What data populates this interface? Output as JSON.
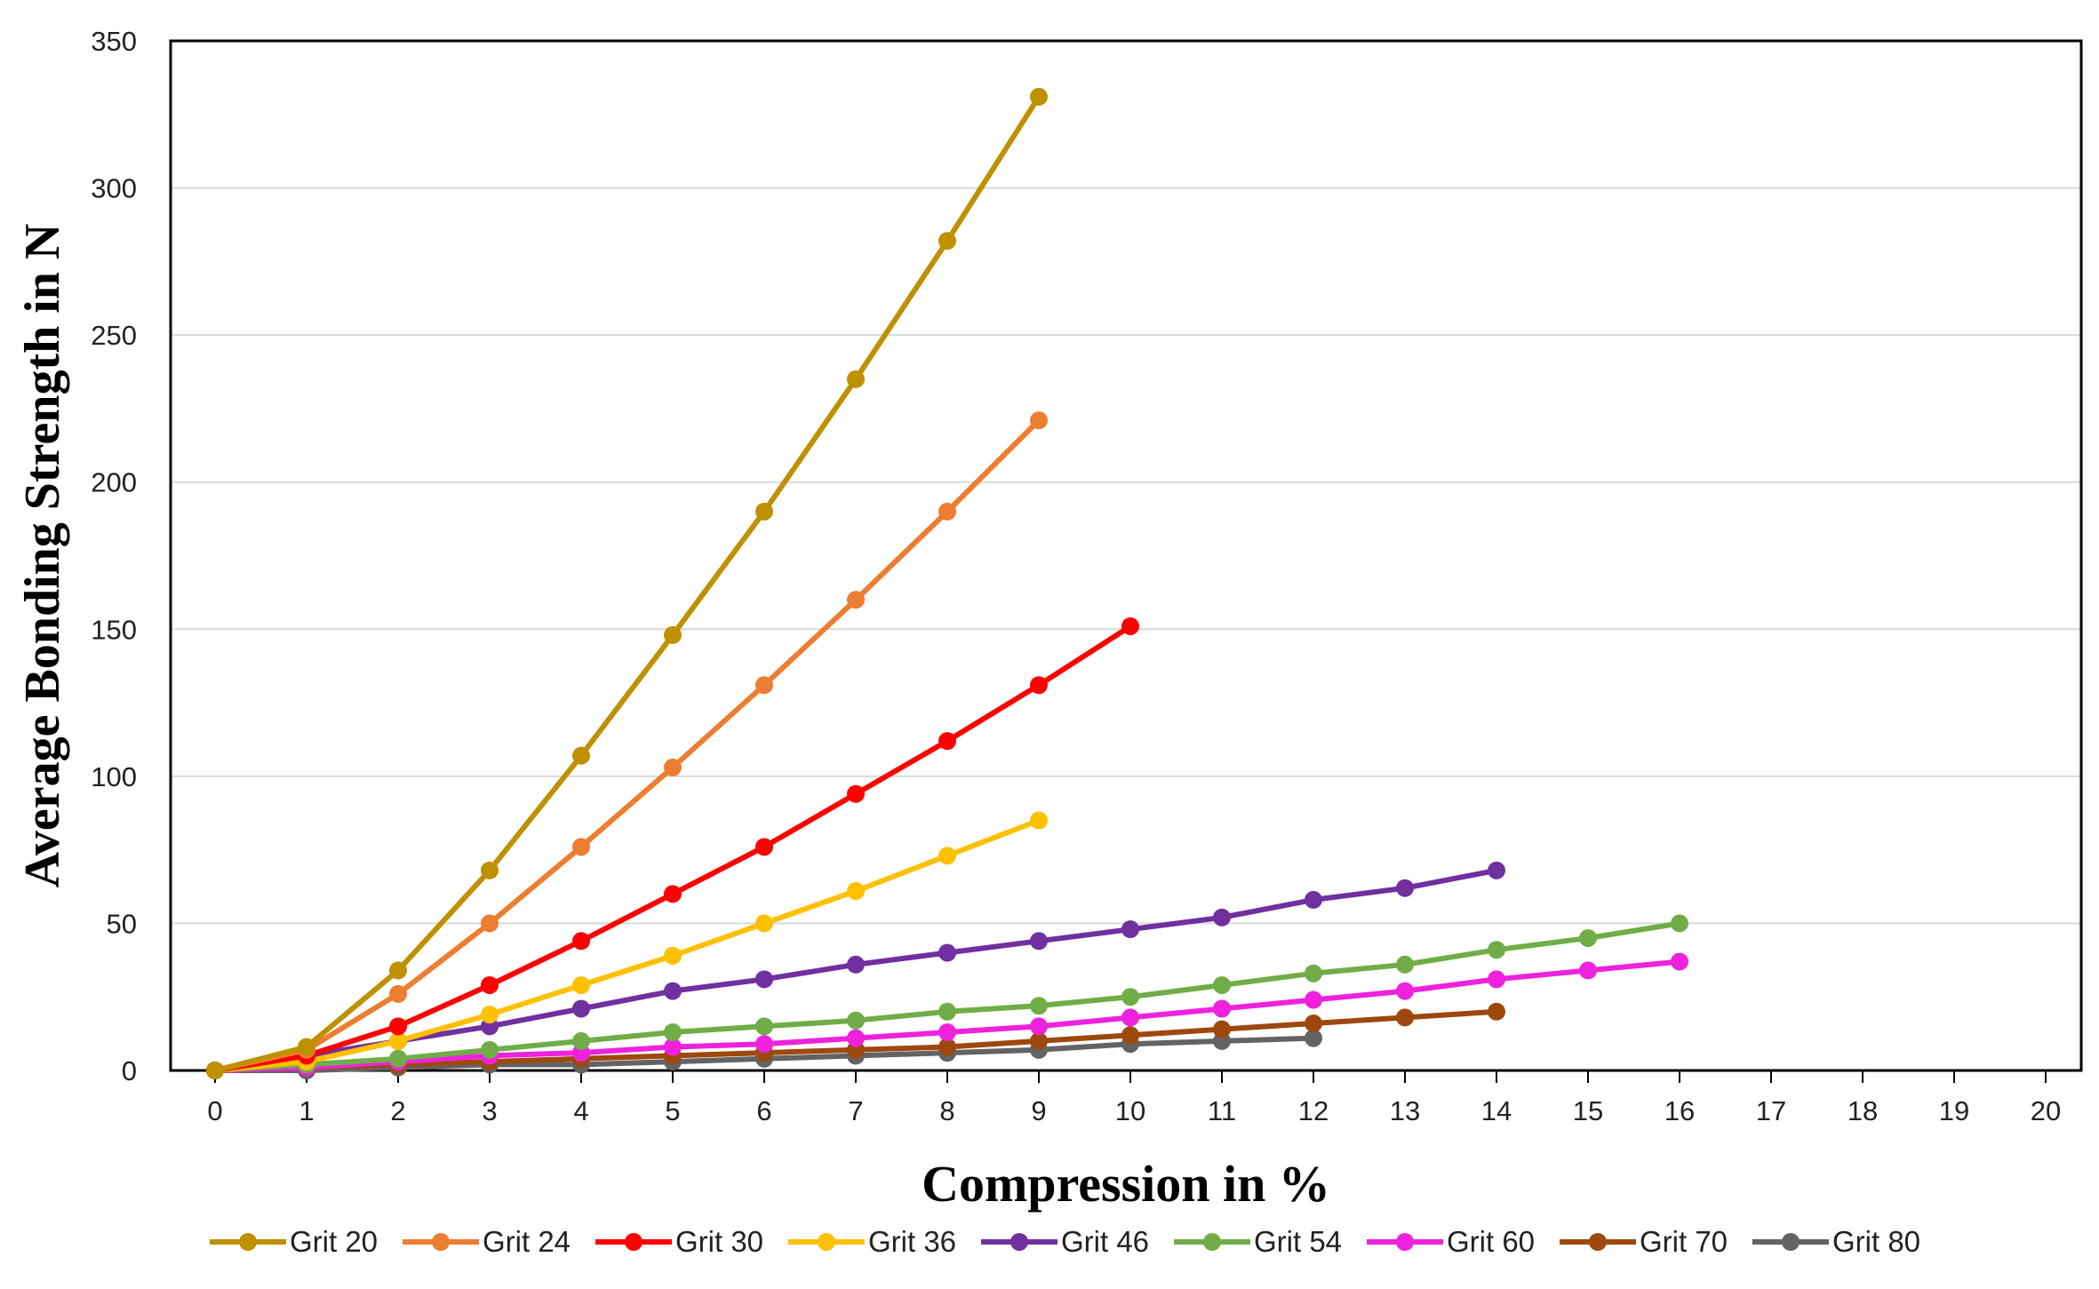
{
  "chart_data": {
    "type": "line",
    "title": "",
    "xlabel": "Compression in %",
    "ylabel": "Average Bonding Strength in N",
    "xlim": [
      0,
      20
    ],
    "ylim": [
      0,
      350
    ],
    "x_ticks": [
      0,
      1,
      2,
      3,
      4,
      5,
      6,
      7,
      8,
      9,
      10,
      11,
      12,
      13,
      14,
      15,
      16,
      17,
      18,
      19,
      20
    ],
    "y_ticks": [
      0,
      50,
      100,
      150,
      200,
      250,
      300,
      350
    ],
    "grid": "horizontal",
    "legend_position": "bottom",
    "series": [
      {
        "name": "Grit 20",
        "color": "#BF9000",
        "x": [
          0,
          1,
          2,
          3,
          4,
          5,
          6,
          7,
          8,
          9
        ],
        "y": [
          0,
          8,
          34,
          68,
          107,
          148,
          190,
          235,
          282,
          331
        ]
      },
      {
        "name": "Grit 24",
        "color": "#ED7D31",
        "x": [
          0,
          1,
          2,
          3,
          4,
          5,
          6,
          7,
          8,
          9
        ],
        "y": [
          0,
          7,
          26,
          50,
          76,
          103,
          131,
          160,
          190,
          221
        ]
      },
      {
        "name": "Grit 30",
        "color": "#FF0000",
        "x": [
          0,
          1,
          2,
          3,
          4,
          5,
          6,
          7,
          8,
          9,
          10
        ],
        "y": [
          0,
          5,
          15,
          29,
          44,
          60,
          76,
          94,
          112,
          131,
          151
        ]
      },
      {
        "name": "Grit 36",
        "color": "#FFC000",
        "x": [
          0,
          1,
          2,
          3,
          4,
          5,
          6,
          7,
          8,
          9
        ],
        "y": [
          0,
          3,
          10,
          19,
          29,
          39,
          50,
          61,
          73,
          85
        ]
      },
      {
        "name": "Grit 46",
        "color": "#7030A0",
        "x": [
          0,
          1,
          2,
          3,
          4,
          5,
          6,
          7,
          8,
          9,
          10,
          11,
          12,
          13,
          14
        ],
        "y": [
          0,
          5,
          10,
          15,
          21,
          27,
          31,
          36,
          40,
          44,
          48,
          52,
          58,
          62,
          68
        ]
      },
      {
        "name": "Grit 54",
        "color": "#70AD47",
        "x": [
          0,
          1,
          2,
          3,
          4,
          5,
          6,
          7,
          8,
          9,
          10,
          11,
          12,
          13,
          14,
          15,
          16
        ],
        "y": [
          0,
          2,
          4,
          7,
          10,
          13,
          15,
          17,
          20,
          22,
          25,
          29,
          33,
          36,
          41,
          45,
          50
        ]
      },
      {
        "name": "Grit 60",
        "color": "#EE22DD",
        "x": [
          0,
          1,
          2,
          3,
          4,
          5,
          6,
          7,
          8,
          9,
          10,
          11,
          12,
          13,
          14,
          15,
          16
        ],
        "y": [
          0,
          1,
          3,
          5,
          6,
          8,
          9,
          11,
          13,
          15,
          18,
          21,
          24,
          27,
          31,
          34,
          37
        ]
      },
      {
        "name": "Grit 70",
        "color": "#9E480E",
        "x": [
          0,
          1,
          2,
          3,
          4,
          5,
          6,
          7,
          8,
          9,
          10,
          11,
          12,
          13,
          14
        ],
        "y": [
          0,
          1,
          2,
          3,
          4,
          5,
          6,
          7,
          8,
          10,
          12,
          14,
          16,
          18,
          20
        ]
      },
      {
        "name": "Grit 80",
        "color": "#636363",
        "x": [
          0,
          1,
          2,
          3,
          4,
          5,
          6,
          7,
          8,
          9,
          10,
          11,
          12
        ],
        "y": [
          0,
          0,
          1,
          2,
          2,
          3,
          4,
          5,
          6,
          7,
          9,
          10,
          11
        ]
      }
    ]
  }
}
